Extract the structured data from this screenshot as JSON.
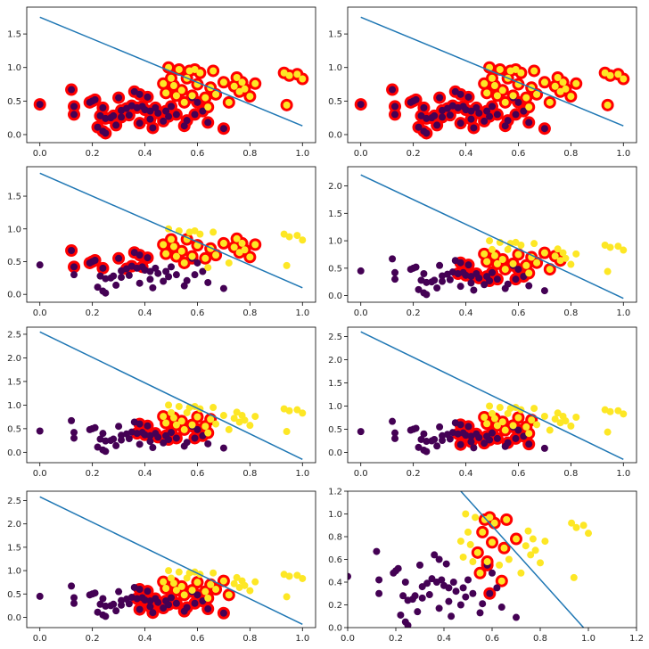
{
  "chart_data": [
    {
      "type": "scatter",
      "title": "",
      "xlabel": "",
      "ylabel": "",
      "xlim": [
        -0.05,
        1.05
      ],
      "ylim": [
        -0.12,
        1.9
      ],
      "xticks": [
        0.0,
        0.2,
        0.4,
        0.6,
        0.8,
        1.0
      ],
      "yticks": [
        0.0,
        0.5,
        1.0,
        1.5
      ],
      "ytick_labels": [
        "0.0",
        "0.5",
        "1.0",
        "1.5"
      ],
      "line": {
        "x": [
          0.0,
          1.0
        ],
        "y": [
          1.75,
          0.13
        ]
      },
      "highlight": "all",
      "highlight_ring_color": "#ff0000"
    },
    {
      "type": "scatter",
      "title": "",
      "xlabel": "",
      "ylabel": "",
      "xlim": [
        -0.05,
        1.05
      ],
      "ylim": [
        -0.12,
        1.9
      ],
      "xticks": [
        0.0,
        0.2,
        0.4,
        0.6,
        0.8,
        1.0
      ],
      "yticks": [
        0.0,
        0.5,
        1.0,
        1.5
      ],
      "ytick_labels": [
        "0.0",
        "0.5",
        "1.0",
        "1.5"
      ],
      "line": {
        "x": [
          0.0,
          1.0
        ],
        "y": [
          1.75,
          0.13
        ]
      },
      "highlight": "all",
      "highlight_ring_color": "#ff0000"
    },
    {
      "type": "scatter",
      "title": "",
      "xlabel": "",
      "ylabel": "",
      "xlim": [
        -0.05,
        1.05
      ],
      "ylim": [
        -0.12,
        1.95
      ],
      "xticks": [
        0.0,
        0.2,
        0.4,
        0.6,
        0.8,
        1.0
      ],
      "yticks": [
        0.0,
        0.5,
        1.0,
        1.5
      ],
      "ytick_labels": [
        "0.0",
        "0.5",
        "1.0",
        "1.5"
      ],
      "line": {
        "x": [
          0.0,
          1.0
        ],
        "y": [
          1.85,
          0.1
        ]
      },
      "highlight": "top_band_ym",
      "band_params": {
        "xmin": 0.12,
        "xmax": 0.83,
        "offset": 0.06
      },
      "highlight_ring_color": "#ff0000"
    },
    {
      "type": "scatter",
      "title": "",
      "xlabel": "",
      "ylabel": "",
      "xlim": [
        -0.05,
        1.05
      ],
      "ylim": [
        -0.12,
        2.35
      ],
      "xticks": [
        0.0,
        0.2,
        0.4,
        0.6,
        0.8,
        1.0
      ],
      "yticks": [
        0.0,
        0.5,
        1.0,
        1.5,
        2.0
      ],
      "ytick_labels": [
        "0.0",
        "0.5",
        "1.0",
        "1.5",
        "2.0"
      ],
      "line": {
        "x": [
          0.0,
          1.0
        ],
        "y": [
          2.2,
          -0.05
        ]
      },
      "highlight": "band",
      "band_params": {
        "xmin": 0.37,
        "xmax": 0.76,
        "ymin": 0.25,
        "ymax": 0.78
      },
      "highlight_ring_color": "#ff0000"
    },
    {
      "type": "scatter",
      "title": "",
      "xlabel": "",
      "ylabel": "",
      "xlim": [
        -0.05,
        1.05
      ],
      "ylim": [
        -0.22,
        2.65
      ],
      "xticks": [
        0.0,
        0.2,
        0.4,
        0.6,
        0.8,
        1.0
      ],
      "yticks": [
        0.0,
        0.5,
        1.0,
        1.5,
        2.0,
        2.5
      ],
      "ytick_labels": [
        "0.0",
        "0.5",
        "1.0",
        "1.5",
        "2.0",
        "2.5"
      ],
      "line": {
        "x": [
          0.0,
          1.0
        ],
        "y": [
          2.55,
          -0.15
        ]
      },
      "highlight": "band",
      "band_params": {
        "xmin": 0.37,
        "xmax": 0.66,
        "ymin": 0.25,
        "ymax": 0.78
      },
      "highlight_ring_color": "#ff0000"
    },
    {
      "type": "scatter",
      "title": "",
      "xlabel": "",
      "ylabel": "",
      "xlim": [
        -0.05,
        1.05
      ],
      "ylim": [
        -0.22,
        2.7
      ],
      "xticks": [
        0.0,
        0.2,
        0.4,
        0.6,
        0.8,
        1.0
      ],
      "yticks": [
        0.0,
        0.5,
        1.0,
        1.5,
        2.0,
        2.5
      ],
      "ytick_labels": [
        "0.0",
        "0.5",
        "1.0",
        "1.5",
        "2.0",
        "2.5"
      ],
      "line": {
        "x": [
          0.0,
          1.0
        ],
        "y": [
          2.6,
          -0.15
        ]
      },
      "highlight": "band",
      "band_params": {
        "xmin": 0.37,
        "xmax": 0.66,
        "ymin": 0.15,
        "ymax": 0.78
      },
      "highlight_ring_color": "#ff0000"
    },
    {
      "type": "scatter",
      "title": "",
      "xlabel": "",
      "ylabel": "",
      "xlim": [
        -0.05,
        1.05
      ],
      "ylim": [
        -0.22,
        2.7
      ],
      "xticks": [
        0.0,
        0.2,
        0.4,
        0.6,
        0.8,
        1.0
      ],
      "yticks": [
        0.0,
        0.5,
        1.0,
        1.5,
        2.0,
        2.5
      ],
      "ytick_labels": [
        "0.0",
        "0.5",
        "1.0",
        "1.5",
        "2.0",
        "2.5"
      ],
      "line": {
        "x": [
          0.0,
          1.0
        ],
        "y": [
          2.58,
          -0.15
        ]
      },
      "highlight": "band",
      "band_params": {
        "xmin": 0.37,
        "xmax": 0.72,
        "ymin": 0.0,
        "ymax": 0.78
      },
      "highlight_ring_color": "#ff0000"
    },
    {
      "type": "scatter",
      "title": "",
      "xlabel": "",
      "ylabel": "",
      "xlim": [
        0.0,
        1.2
      ],
      "ylim": [
        0.0,
        1.2
      ],
      "xticks": [
        0.0,
        0.2,
        0.4,
        0.6,
        0.8,
        1.0,
        1.2
      ],
      "yticks": [
        0.0,
        0.2,
        0.4,
        0.6,
        0.8,
        1.0,
        1.2
      ],
      "ytick_labels": [
        "0.0",
        "0.2",
        "0.4",
        "0.6",
        "0.8",
        "1.0",
        "1.2"
      ],
      "line": {
        "x": [
          0.47,
          0.98
        ],
        "y": [
          1.2,
          0.0
        ]
      },
      "highlight": "list",
      "highlight_indices": [
        41,
        42,
        54,
        55,
        56,
        57,
        58,
        59,
        60,
        61,
        63,
        64,
        65,
        67
      ],
      "highlight_ring_color": "#ff0000"
    }
  ],
  "points": {
    "class0_color": "#440154",
    "class1_color": "#fde725",
    "x": [
      0.0,
      0.12,
      0.13,
      0.13,
      0.19,
      0.2,
      0.21,
      0.22,
      0.23,
      0.24,
      0.24,
      0.25,
      0.25,
      0.27,
      0.28,
      0.29,
      0.3,
      0.31,
      0.31,
      0.33,
      0.34,
      0.35,
      0.36,
      0.37,
      0.38,
      0.38,
      0.39,
      0.4,
      0.41,
      0.42,
      0.42,
      0.43,
      0.44,
      0.45,
      0.47,
      0.48,
      0.49,
      0.5,
      0.52,
      0.55,
      0.56,
      0.58,
      0.59,
      0.6,
      0.62,
      0.64,
      0.7,
      0.47,
      0.48,
      0.49,
      0.5,
      0.51,
      0.52,
      0.53,
      0.54,
      0.55,
      0.56,
      0.57,
      0.58,
      0.59,
      0.6,
      0.61,
      0.63,
      0.64,
      0.65,
      0.66,
      0.67,
      0.7,
      0.72,
      0.74,
      0.75,
      0.76,
      0.77,
      0.78,
      0.8,
      0.82,
      0.93,
      0.94,
      0.95,
      0.98,
      1.0
    ],
    "y": [
      0.45,
      0.67,
      0.42,
      0.3,
      0.48,
      0.5,
      0.52,
      0.11,
      0.28,
      0.4,
      0.05,
      0.02,
      0.24,
      0.25,
      0.28,
      0.14,
      0.55,
      0.26,
      0.36,
      0.39,
      0.29,
      0.43,
      0.64,
      0.4,
      0.6,
      0.17,
      0.42,
      0.37,
      0.56,
      0.23,
      0.35,
      0.1,
      0.4,
      0.32,
      0.2,
      0.35,
      0.27,
      0.42,
      0.3,
      0.13,
      0.21,
      0.55,
      0.3,
      0.48,
      0.35,
      0.18,
      0.09,
      0.76,
      0.62,
      1.0,
      0.84,
      0.73,
      0.58,
      0.97,
      0.66,
      0.48,
      0.84,
      0.95,
      0.58,
      0.97,
      0.75,
      0.92,
      0.55,
      0.41,
      0.7,
      0.95,
      0.6,
      0.78,
      0.48,
      0.72,
      0.85,
      0.64,
      0.78,
      0.68,
      0.57,
      0.76,
      0.92,
      0.44,
      0.88,
      0.9,
      0.83
    ],
    "label": [
      0,
      0,
      0,
      0,
      0,
      0,
      0,
      0,
      0,
      0,
      0,
      0,
      0,
      0,
      0,
      0,
      0,
      0,
      0,
      0,
      0,
      0,
      0,
      0,
      0,
      0,
      0,
      0,
      0,
      0,
      0,
      0,
      0,
      0,
      0,
      0,
      0,
      0,
      0,
      0,
      0,
      0,
      0,
      0,
      0,
      0,
      0,
      1,
      1,
      1,
      1,
      1,
      1,
      1,
      1,
      1,
      1,
      1,
      1,
      1,
      1,
      1,
      1,
      1,
      1,
      1,
      1,
      1,
      1,
      1,
      1,
      1,
      1,
      1,
      1,
      1,
      1,
      1,
      1,
      1,
      1
    ]
  },
  "line_color": "#1f77b4",
  "axes_color": "#000000"
}
